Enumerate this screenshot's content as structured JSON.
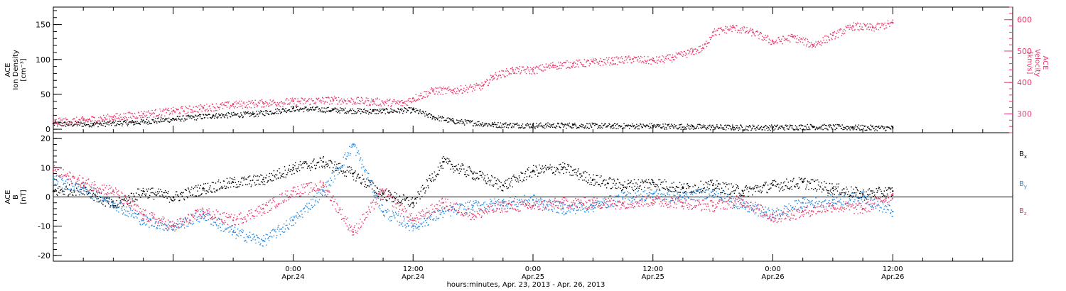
{
  "colors": {
    "black": "#000000",
    "pink": "#e8386a",
    "blue": "#1e88e5"
  },
  "chart_data": [
    {
      "type": "scatter",
      "panel": "top",
      "xlabel": "hours:minutes, Apr. 23, 2013 - Apr. 26, 2013",
      "xlim_hours": [
        0,
        96
      ],
      "x_ticks": [
        {
          "hour": 24,
          "time": "0:00",
          "date": "Apr.24"
        },
        {
          "hour": 36,
          "time": "12:00",
          "date": "Apr.24"
        },
        {
          "hour": 48,
          "time": "0:00",
          "date": "Apr.25"
        },
        {
          "hour": 60,
          "time": "12:00",
          "date": "Apr.25"
        },
        {
          "hour": 72,
          "time": "0:00",
          "date": "Apr.26"
        },
        {
          "hour": 84,
          "time": "12:00",
          "date": "Apr.26"
        }
      ],
      "left_axis": {
        "label_lines": [
          "ACE",
          "Ion Density",
          "[cm⁻³]"
        ],
        "ylim": [
          -5,
          175
        ],
        "ticks": [
          0,
          50,
          100,
          150
        ],
        "color": "#000000"
      },
      "right_axis": {
        "label_lines": [
          "ACE",
          "Velocity",
          "[km/s]"
        ],
        "ylim": [
          240,
          640
        ],
        "ticks": [
          300,
          400,
          500,
          600
        ],
        "color": "#e8386a"
      },
      "series": [
        {
          "key": "density",
          "axis": "left",
          "color": "#000000",
          "x": [
            0,
            4,
            8,
            12,
            16,
            20,
            24,
            28,
            32,
            36,
            38,
            40,
            44,
            48,
            52,
            56,
            60,
            64,
            68,
            72,
            76,
            80,
            84
          ],
          "y": [
            8,
            8,
            10,
            15,
            20,
            22,
            30,
            28,
            26,
            28,
            18,
            12,
            7,
            6,
            6,
            5,
            5,
            4,
            3,
            3,
            4,
            3,
            2
          ]
        },
        {
          "key": "velocity",
          "axis": "right",
          "color": "#e8386a",
          "x": [
            0,
            3,
            6,
            9,
            12,
            15,
            18,
            21,
            24,
            28,
            32,
            35,
            36,
            38,
            40,
            43,
            44,
            46,
            48,
            50,
            52,
            54,
            56,
            58,
            60,
            62,
            64,
            65,
            66,
            68,
            70,
            72,
            74,
            76,
            78,
            80,
            82,
            84
          ],
          "y": [
            275,
            280,
            290,
            300,
            310,
            320,
            330,
            335,
            340,
            345,
            340,
            335,
            350,
            375,
            375,
            390,
            420,
            440,
            440,
            455,
            460,
            465,
            470,
            475,
            470,
            480,
            500,
            510,
            560,
            575,
            560,
            530,
            545,
            520,
            550,
            580,
            575,
            590
          ]
        }
      ]
    },
    {
      "type": "scatter",
      "panel": "bottom",
      "xlim_hours": [
        0,
        96
      ],
      "left_axis": {
        "label_lines": [
          "ACE",
          "B",
          "[nT]"
        ],
        "ylim": [
          -22,
          22
        ],
        "ticks": [
          -20,
          -10,
          0,
          10,
          20
        ]
      },
      "zero_line": true,
      "legend_position": "right",
      "series": [
        {
          "name": "Bx",
          "label_main": "B",
          "label_sub": "x",
          "color": "#000000",
          "x": [
            0,
            3,
            6,
            9,
            12,
            15,
            18,
            21,
            24,
            27,
            30,
            33,
            36,
            39,
            42,
            45,
            48,
            51,
            54,
            57,
            60,
            63,
            66,
            69,
            72,
            75,
            78,
            81,
            84
          ],
          "y": [
            2,
            3,
            -3,
            2,
            0,
            3,
            5,
            6,
            10,
            12,
            8,
            1,
            -2,
            12,
            8,
            4,
            9,
            10,
            6,
            4,
            5,
            3,
            4,
            2,
            4,
            5,
            3,
            1,
            2
          ]
        },
        {
          "name": "By",
          "label_main": "B",
          "label_sub": "y",
          "color": "#1e88e5",
          "x": [
            0,
            3,
            6,
            9,
            12,
            15,
            18,
            21,
            24,
            27,
            30,
            33,
            36,
            39,
            42,
            45,
            48,
            51,
            54,
            57,
            60,
            63,
            66,
            69,
            72,
            75,
            78,
            81,
            84
          ],
          "y": [
            6,
            3,
            -2,
            -8,
            -10,
            -6,
            -12,
            -15,
            -8,
            2,
            18,
            -5,
            -10,
            -5,
            -3,
            -2,
            -1,
            -4,
            -3,
            0,
            1,
            0,
            2,
            -3,
            -6,
            -2,
            -1,
            0,
            -5
          ]
        },
        {
          "name": "Bz",
          "label_main": "B",
          "label_sub": "z",
          "color": "#e8386a",
          "x": [
            0,
            3,
            6,
            9,
            12,
            15,
            18,
            21,
            24,
            27,
            30,
            33,
            36,
            39,
            42,
            45,
            48,
            51,
            54,
            57,
            60,
            63,
            66,
            69,
            72,
            75,
            78,
            81,
            84
          ],
          "y": [
            9,
            5,
            2,
            -6,
            -10,
            -5,
            -8,
            -4,
            2,
            4,
            -12,
            2,
            -8,
            -2,
            -6,
            -3,
            -3,
            -2,
            -2,
            -2,
            -1,
            -2,
            -3,
            -1,
            -7,
            -5,
            -3,
            -4,
            1
          ]
        }
      ]
    }
  ]
}
